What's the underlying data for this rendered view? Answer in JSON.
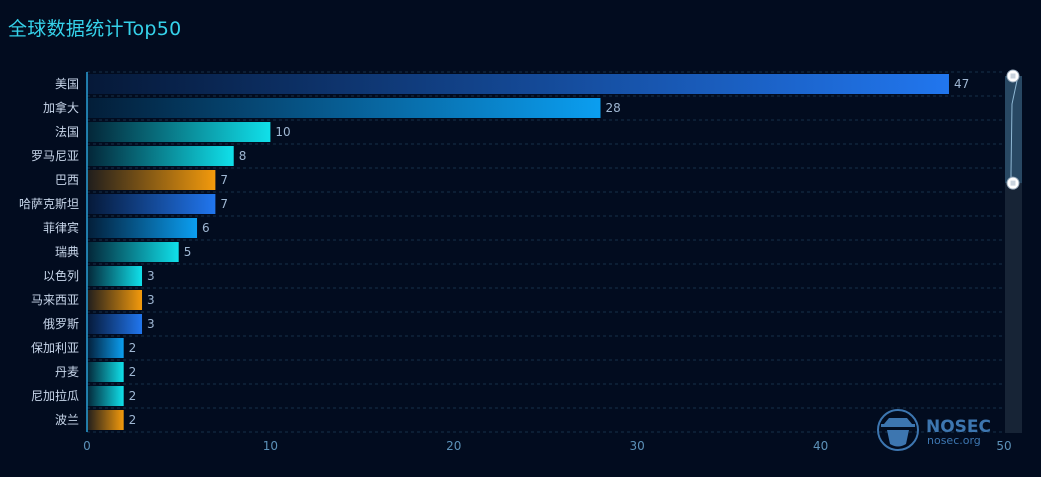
{
  "title": "全球数据统计Top50",
  "colors": {
    "background": "#020c1f",
    "title": "#35d2ea",
    "grid": "#16304a",
    "axis": "#2a9fd6",
    "blue": "#2176ee",
    "sky": "#0b9ef0",
    "cyan": "#10e0ea",
    "orange": "#f39a0c"
  },
  "logo": {
    "name": "NOSEC",
    "domain": "nosec.org"
  },
  "chart_data": {
    "type": "bar",
    "orientation": "horizontal",
    "title": "全球数据统计Top50",
    "categories": [
      "美国",
      "加拿大",
      "法国",
      "罗马尼亚",
      "巴西",
      "哈萨克斯坦",
      "菲律宾",
      "瑞典",
      "以色列",
      "马来西亚",
      "俄罗斯",
      "保加利亚",
      "丹麦",
      "尼加拉瓜",
      "波兰"
    ],
    "values": [
      47,
      28,
      10,
      8,
      7,
      7,
      6,
      5,
      3,
      3,
      3,
      2,
      2,
      2,
      2
    ],
    "bar_colors": [
      "blue",
      "sky",
      "cyan",
      "cyan",
      "orange",
      "blue",
      "sky",
      "cyan",
      "cyan",
      "orange",
      "blue",
      "sky",
      "cyan",
      "cyan",
      "orange"
    ],
    "xlim": [
      0,
      50
    ],
    "xticks": [
      0,
      10,
      20,
      30,
      40,
      50
    ],
    "grid": true,
    "data_zoom": {
      "start": 0,
      "end": 0.3
    }
  }
}
